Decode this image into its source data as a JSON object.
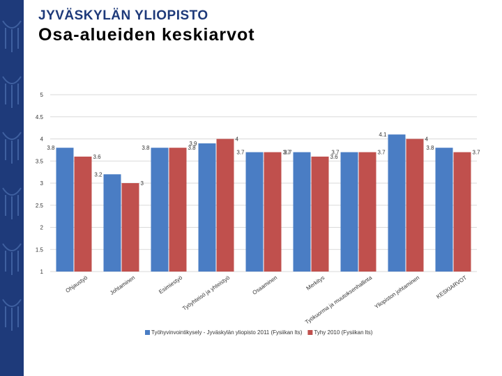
{
  "header": {
    "university": "JYVÄSKYLÄN YLIOPISTO",
    "title": "Osa-alueiden keskiarvot"
  },
  "colors": {
    "series1": "#4a7dc4",
    "series2": "#c0504d",
    "brand": "#1e3a7a"
  },
  "chart_data": {
    "type": "bar",
    "title": "",
    "xlabel": "",
    "ylabel": "",
    "ylim": [
      1,
      5
    ],
    "yticks": [
      "1",
      "1.5",
      "2",
      "2.5",
      "3",
      "3.5",
      "4",
      "4.5",
      "5"
    ],
    "grid": true,
    "legend_position": "bottom",
    "categories": [
      "Ohjaustyö",
      "Johtaminen",
      "Esimiestyö",
      "Työyhteisö ja yhteistyö",
      "Osaaminen",
      "Merkitys",
      "Työkuorma ja muutoksenhallinta",
      "Yliopiston johtaminen",
      "KESKIARVOT"
    ],
    "series": [
      {
        "name": "Työhyvinvointikysely - Jyväskylän yliopisto 2011 (Fysiikan lts)",
        "values": [
          3.8,
          3.2,
          3.8,
          3.9,
          3.7,
          3.7,
          3.7,
          4.1,
          3.8
        ],
        "labels": [
          "3.8",
          "3.2",
          "3.8",
          "3.9",
          "3.7",
          "3.7",
          "3.7",
          "4.1",
          "3.8"
        ]
      },
      {
        "name": "Tyhy 2010 (Fysiikan lts)",
        "values": [
          3.6,
          3.0,
          3.8,
          4.0,
          3.7,
          3.6,
          3.7,
          4.0,
          3.7
        ],
        "labels": [
          "3.6",
          "3",
          "3.8",
          "4",
          "3.7",
          "3.6",
          "3.7",
          "4",
          "3.7"
        ]
      }
    ]
  }
}
